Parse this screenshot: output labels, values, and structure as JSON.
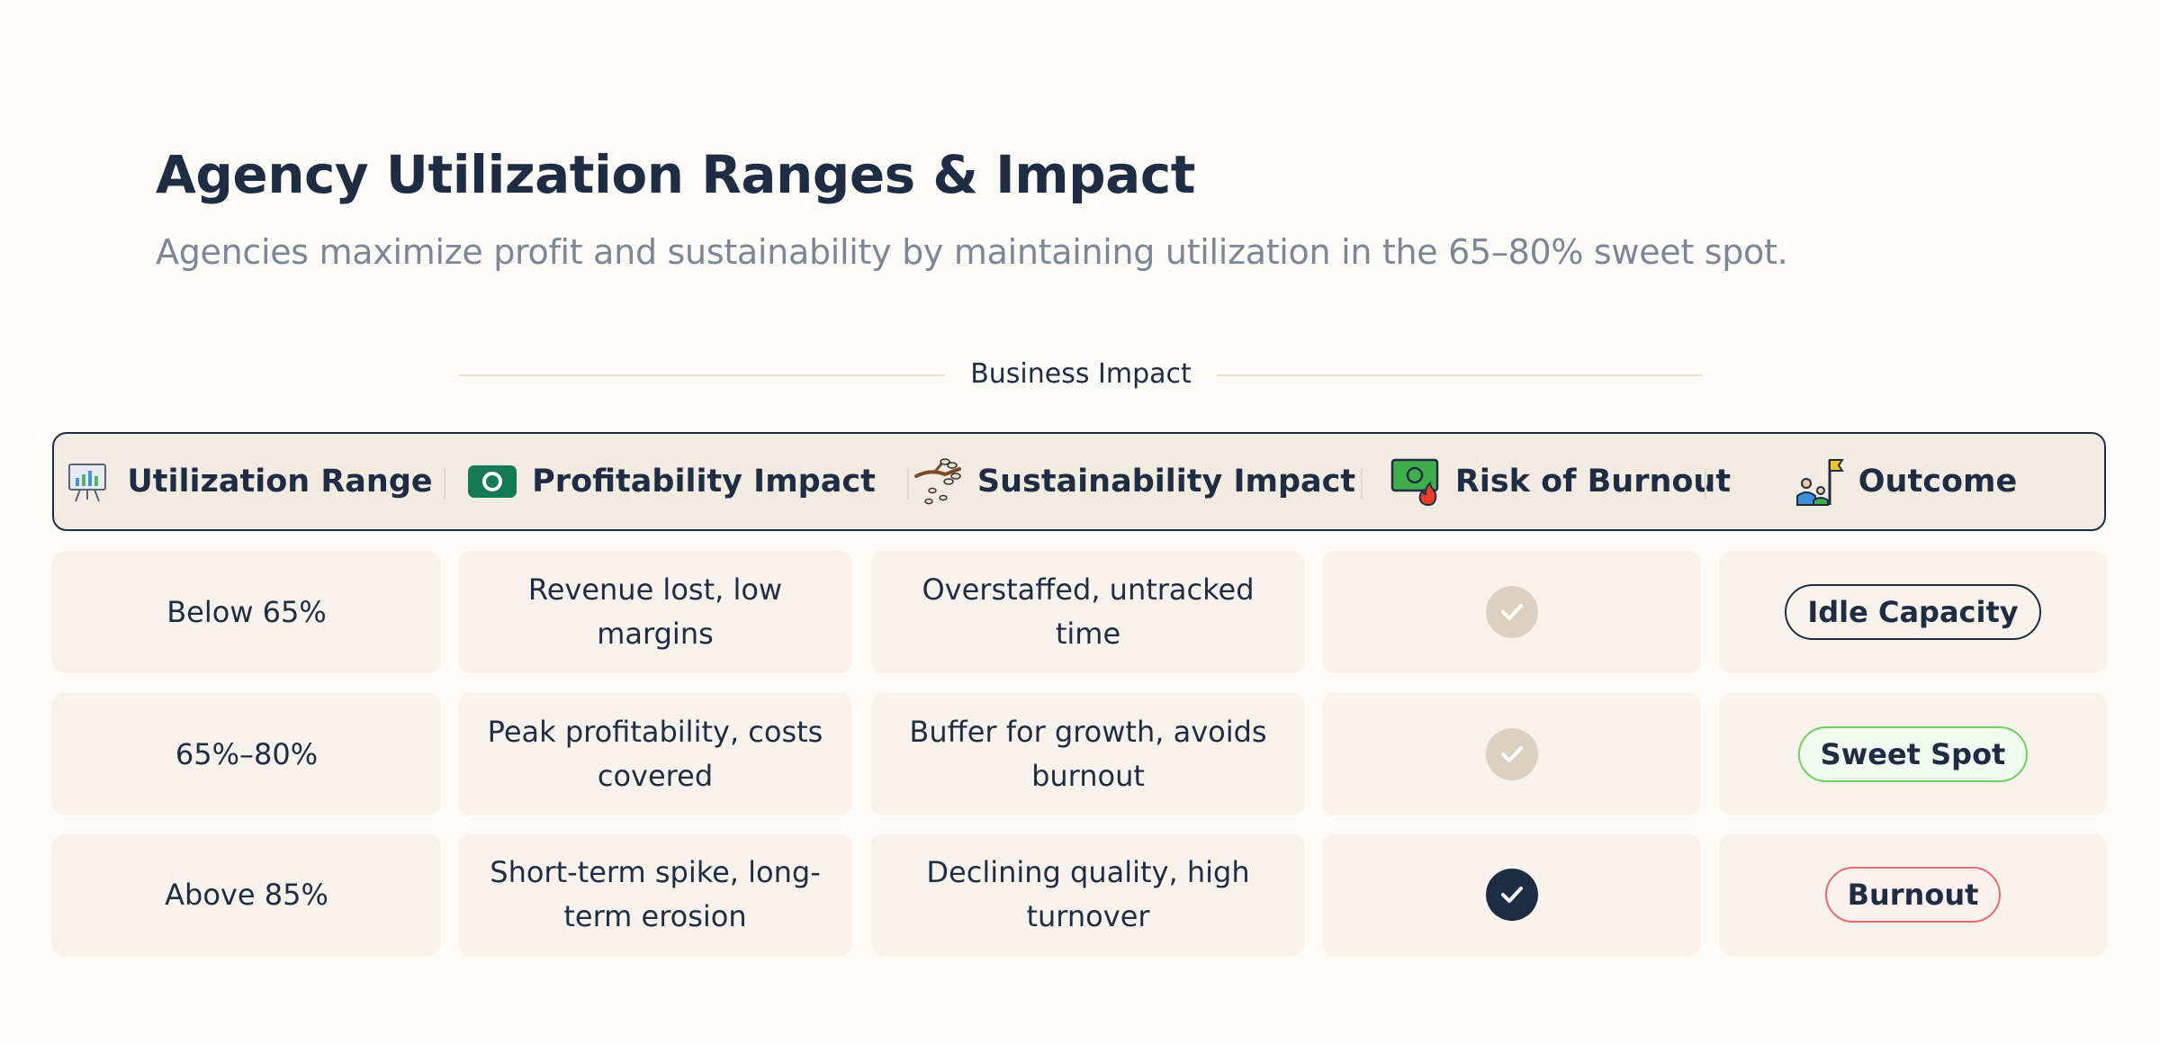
{
  "header": {
    "title": "Agency Utilization Ranges & Impact",
    "subtitle": "Agencies maximize profit and sustainability by maintaining utilization in the 65–80% sweet spot."
  },
  "group_label": "Business Impact",
  "columns": [
    {
      "label": "Utilization Range",
      "icon": "presentation-chart-icon"
    },
    {
      "label": "Profitability Impact",
      "icon": "money-icon"
    },
    {
      "label": "Sustainability Impact",
      "icon": "branch-icon"
    },
    {
      "label": "Risk of Burnout",
      "icon": "money-fire-icon"
    },
    {
      "label": "Outcome",
      "icon": "team-flag-icon"
    }
  ],
  "rows": [
    {
      "range": "Below 65%",
      "profitability": "Revenue lost, low margins",
      "sustainability": "Overstaffed, untracked time",
      "burnout_risk": false,
      "outcome": "Idle Capacity"
    },
    {
      "range": "65%–80%",
      "profitability": "Peak profitability, costs covered",
      "sustainability": "Buffer for growth, avoids burnout",
      "burnout_risk": false,
      "outcome": "Sweet Spot"
    },
    {
      "range": "Above 85%",
      "profitability": "Short-term spike, long-term erosion",
      "sustainability": "Declining quality, high turnover",
      "burnout_risk": true,
      "outcome": "Burnout"
    }
  ],
  "colors": {
    "ink": "#1f2d44",
    "muted": "#7c8697",
    "cell_bg": "#f7f2ec",
    "header_bg": "#f1ebe2",
    "sweet_spot": "#6fcf5f",
    "burnout": "#e86b6b"
  }
}
